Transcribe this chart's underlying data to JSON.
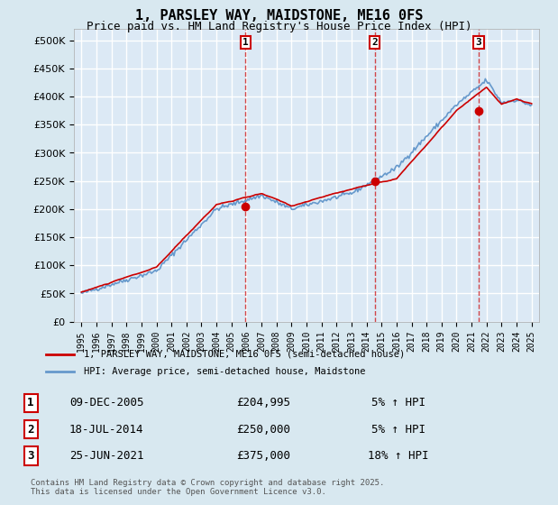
{
  "title": "1, PARSLEY WAY, MAIDSTONE, ME16 0FS",
  "subtitle": "Price paid vs. HM Land Registry's House Price Index (HPI)",
  "ylabel": "",
  "bg_color": "#d6e4f0",
  "plot_bg_color": "#dce9f5",
  "grid_color": "#ffffff",
  "line_color_red": "#cc0000",
  "line_color_blue": "#6699cc",
  "ylim": [
    0,
    520000
  ],
  "yticks": [
    0,
    50000,
    100000,
    150000,
    200000,
    250000,
    300000,
    350000,
    400000,
    450000,
    500000
  ],
  "ytick_labels": [
    "£0",
    "£50K",
    "£100K",
    "£150K",
    "£200K",
    "£250K",
    "£300K",
    "£350K",
    "£400K",
    "£450K",
    "£500K"
  ],
  "sale_dates": [
    2005.94,
    2014.54,
    2021.48
  ],
  "sale_prices": [
    204995,
    250000,
    375000
  ],
  "sale_labels": [
    "1",
    "2",
    "3"
  ],
  "legend_red": "1, PARSLEY WAY, MAIDSTONE, ME16 0FS (semi-detached house)",
  "legend_blue": "HPI: Average price, semi-detached house, Maidstone",
  "table_rows": [
    {
      "num": "1",
      "date": "09-DEC-2005",
      "price": "£204,995",
      "change": "5% ↑ HPI"
    },
    {
      "num": "2",
      "date": "18-JUL-2014",
      "price": "£250,000",
      "change": "5% ↑ HPI"
    },
    {
      "num": "3",
      "date": "25-JUN-2021",
      "price": "£375,000",
      "change": "18% ↑ HPI"
    }
  ],
  "footnote": "Contains HM Land Registry data © Crown copyright and database right 2025.\nThis data is licensed under the Open Government Licence v3.0.",
  "xmin": 1994.5,
  "xmax": 2025.5
}
